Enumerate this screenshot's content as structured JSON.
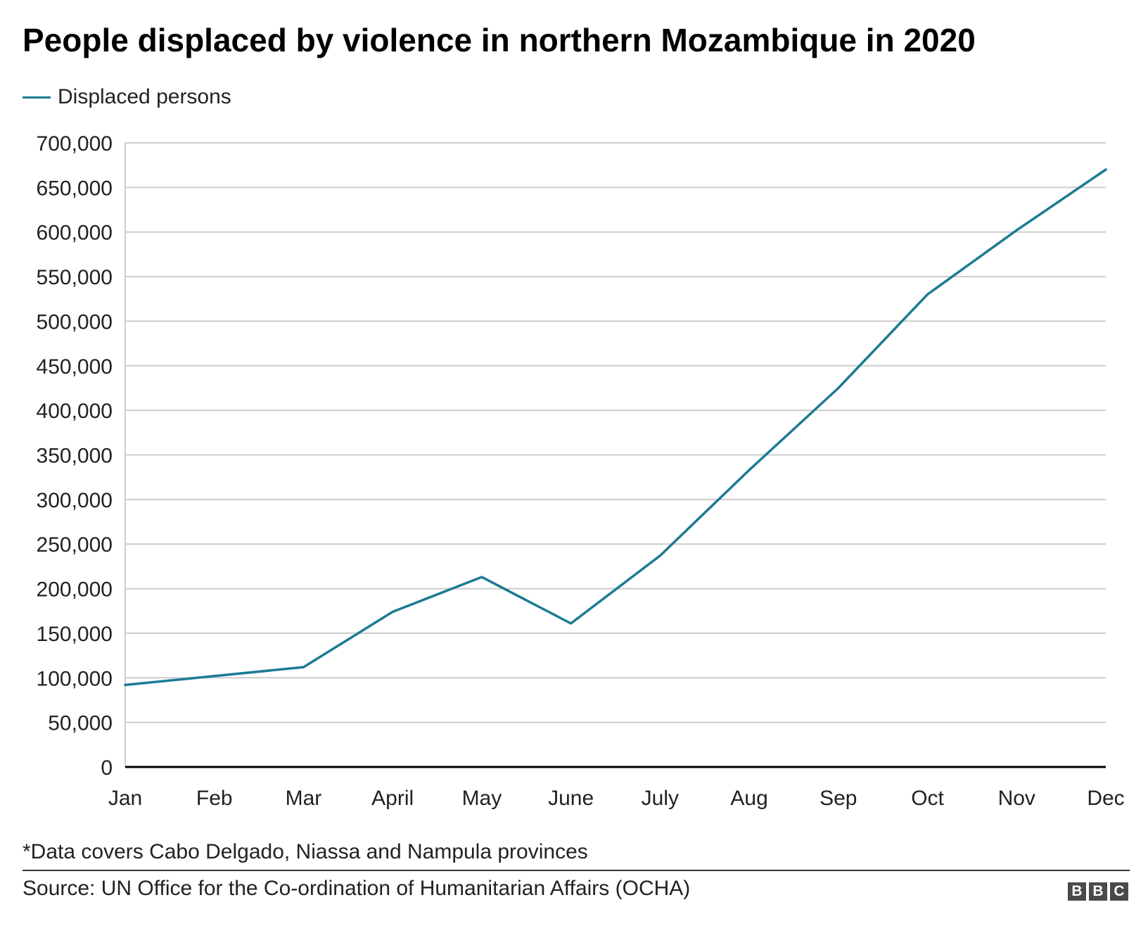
{
  "chart_data": {
    "type": "line",
    "title": "People displaced by violence in northern Mozambique in 2020",
    "categories": [
      "Jan",
      "Feb",
      "Mar",
      "April",
      "May",
      "June",
      "July",
      "Aug",
      "Sep",
      "Oct",
      "Nov",
      "Dec"
    ],
    "series": [
      {
        "name": "Displaced persons",
        "color": "#1c7b93",
        "values": [
          92000,
          102000,
          112000,
          174000,
          213000,
          161000,
          237000,
          333000,
          425000,
          530000,
          602000,
          670000
        ]
      }
    ],
    "ylim": [
      0,
      700000
    ],
    "yticks": [
      "0",
      "50,000",
      "100,000",
      "150,000",
      "200,000",
      "250,000",
      "300,000",
      "350,000",
      "400,000",
      "450,000",
      "500,000",
      "550,000",
      "600,000",
      "650,000",
      "700,000"
    ],
    "xlabel": "",
    "ylabel": "",
    "grid": "horizontal",
    "legend": "top-left"
  },
  "note": "*Data covers Cabo Delgado, Niassa and Nampula provinces",
  "source": "Source: UN Office for the Co-ordination of Humanitarian Affairs (OCHA)",
  "logo": [
    "B",
    "B",
    "C"
  ],
  "colors": {
    "line": "#1c7b93",
    "grid": "#cccccc",
    "axis": "#000000",
    "text": "#222222"
  }
}
